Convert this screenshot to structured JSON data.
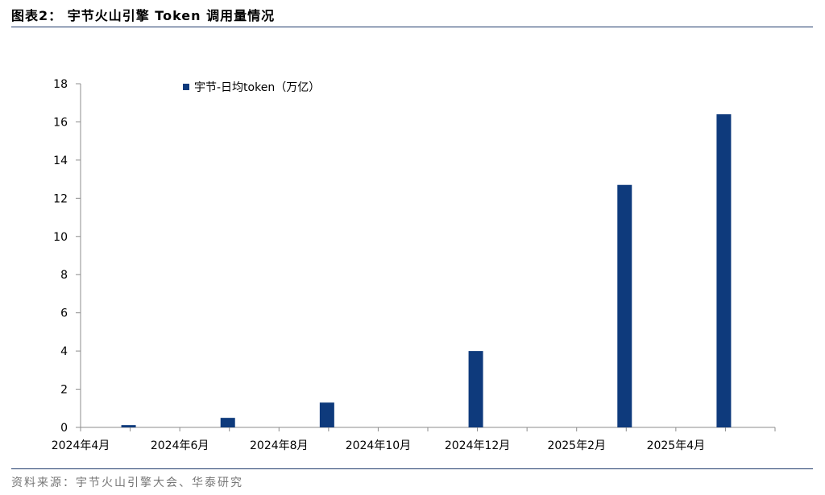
{
  "header": {
    "figure_label": "图表2：",
    "title": "宇节火山引擎 Token 调用量情况"
  },
  "footer": {
    "source": "资料来源：宇节火山引擎大会、华泰研究"
  },
  "colors": {
    "bar": "#0e3a7c",
    "rule": "#1f3a6b",
    "axis": "#8c8c8c",
    "source_text": "#777777"
  },
  "chart_data": {
    "type": "bar",
    "series": [
      {
        "name": "宇节-日均token（万亿）",
        "values": [
          0.12,
          0.5,
          1.3,
          4.0,
          12.7,
          16.4
        ]
      }
    ],
    "x_dates": [
      "2024-05",
      "2024-07",
      "2024-09",
      "2024-12",
      "2025-03",
      "2025-05"
    ],
    "x_tick_labels": [
      "2024年4月",
      "2024年6月",
      "2024年8月",
      "2024年10月",
      "2024年12月",
      "2025年2月",
      "2025年4月"
    ],
    "x_tick_dates": [
      "2024-04",
      "2024-06",
      "2024-08",
      "2024-10",
      "2024-12",
      "2025-02",
      "2025-04"
    ],
    "x_range": [
      "2024-04",
      "2025-06"
    ],
    "ylim": [
      0,
      18
    ],
    "y_ticks": [
      0,
      2,
      4,
      6,
      8,
      10,
      12,
      14,
      16,
      18
    ],
    "legend_position": "top-left",
    "grid": false,
    "title": "",
    "xlabel": "",
    "ylabel": ""
  }
}
